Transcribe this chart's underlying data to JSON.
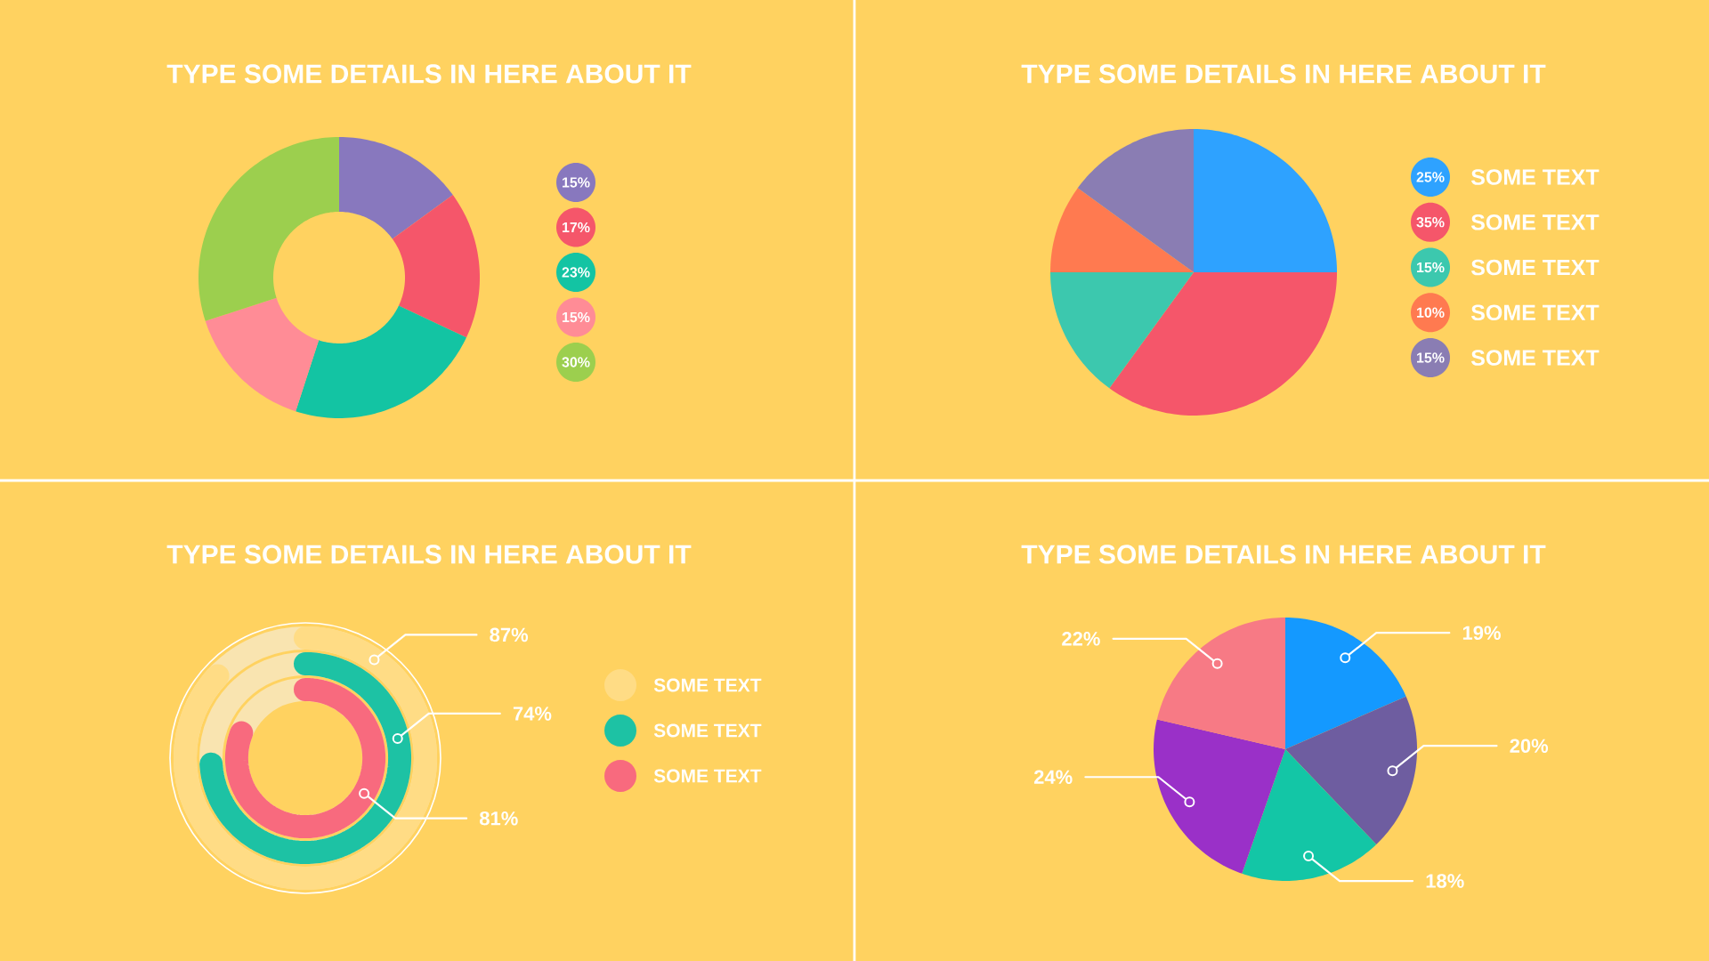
{
  "chart_data": [
    {
      "type": "donut",
      "title": "TYPE SOME DETAILS IN HERE ABOUT IT",
      "categories": [
        null,
        null,
        null,
        null,
        null
      ],
      "values": [
        15,
        17,
        23,
        15,
        30
      ],
      "colors": [
        "#8878be",
        "#f5566a",
        "#13c4a3",
        "#ff8c96",
        "#9ccf4e"
      ],
      "annotations": [
        "15%",
        "17%",
        "23%",
        "15%",
        "30%"
      ]
    },
    {
      "type": "pie",
      "title": "TYPE SOME DETAILS IN HERE ABOUT IT",
      "categories": [
        "SOME TEXT",
        "SOME TEXT",
        "SOME TEXT",
        "SOME TEXT",
        "SOME TEXT"
      ],
      "values": [
        25,
        35,
        15,
        10,
        15
      ],
      "value_labels": [
        "25%",
        "35%",
        "15%",
        "10%",
        "15%"
      ],
      "colors": [
        "#2ea2ff",
        "#f5566a",
        "#3cc8ae",
        "#ff7a50",
        "#8a7db3"
      ],
      "legend": "right"
    },
    {
      "type": "other",
      "title": "TYPE SOME DETAILS IN HERE ABOUT IT",
      "categories": [
        "SOME TEXT",
        "SOME TEXT",
        "SOME TEXT"
      ],
      "values": [
        87,
        74,
        81
      ],
      "value_labels": [
        "87%",
        "74%",
        "81%"
      ],
      "colors": [
        "#ffdc85",
        "#1dc2a4",
        "#f86a7e"
      ]
    },
    {
      "type": "pie",
      "title": "TYPE SOME DETAILS IN HERE ABOUT IT",
      "categories": [
        null,
        null,
        null,
        null,
        null
      ],
      "values": [
        19,
        20,
        18,
        24,
        22
      ],
      "value_labels": [
        "19%",
        "20%",
        "18%",
        "24%",
        "22%"
      ],
      "colors": [
        "#1499ff",
        "#6e5da0",
        "#13c6a6",
        "#9a30c8",
        "#f77a85"
      ]
    }
  ]
}
